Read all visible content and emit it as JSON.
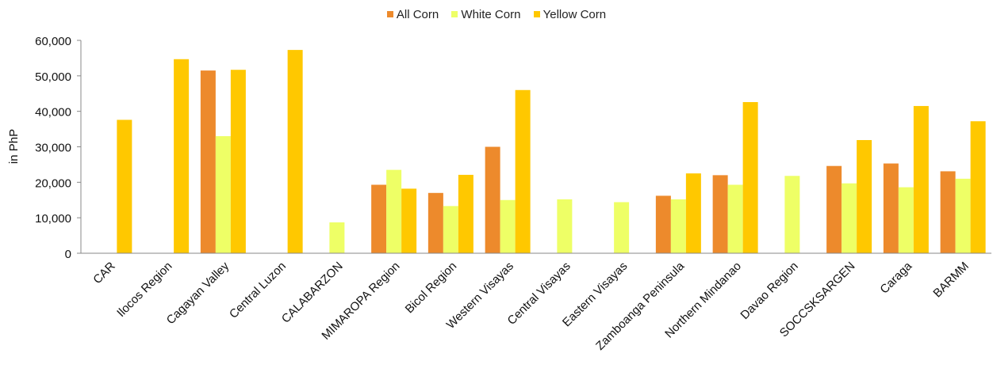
{
  "chart_data": {
    "type": "bar",
    "ylabel": "in PhP",
    "ylim": [
      0,
      60000
    ],
    "yticks": [
      0,
      10000,
      20000,
      30000,
      40000,
      50000,
      60000
    ],
    "ytick_labels": [
      "0",
      "10,000",
      "20,000",
      "30,000",
      "40,000",
      "50,000",
      "60,000"
    ],
    "legend_position": "top-center",
    "grid": false,
    "categories": [
      "CAR",
      "Ilocos Region",
      "Cagayan Valley",
      "Central Luzon",
      "CALABARZON",
      "MIMAROPA Region",
      "Bicol Region",
      "Western Visayas",
      "Central Visayas",
      "Eastern Visayas",
      "Zamboanga Peninsula",
      "Northern Mindanao",
      "Davao Region",
      "SOCCSKSARGEN",
      "Caraga",
      "BARMM"
    ],
    "series": [
      {
        "name": "All Corn",
        "color": "#ED8A2C",
        "values": [
          null,
          null,
          51500,
          null,
          null,
          19300,
          17000,
          30000,
          null,
          null,
          16200,
          22000,
          null,
          24600,
          25300,
          23100
        ]
      },
      {
        "name": "White Corn",
        "color": "#EEFF66",
        "values": [
          null,
          null,
          33000,
          null,
          8700,
          23500,
          13300,
          15000,
          15200,
          14400,
          15200,
          19300,
          21800,
          19700,
          18600,
          21000
        ]
      },
      {
        "name": "Yellow Corn",
        "color": "#FFC800",
        "values": [
          37600,
          54700,
          51700,
          57300,
          null,
          18200,
          22100,
          46000,
          null,
          null,
          22500,
          42600,
          null,
          31900,
          41500,
          37200
        ]
      }
    ]
  }
}
